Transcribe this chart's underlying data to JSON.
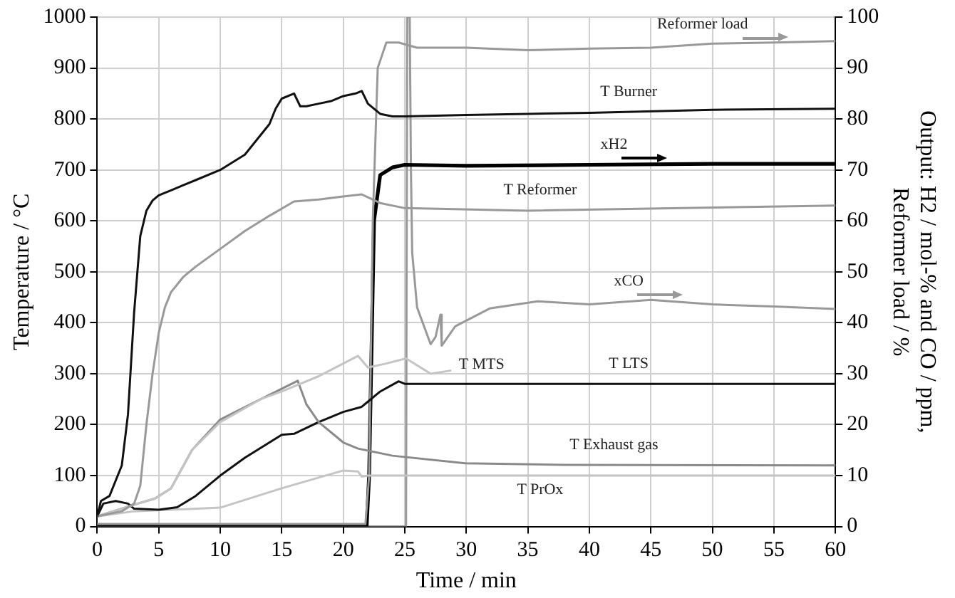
{
  "chart_data": {
    "type": "line",
    "xlabel": "Time / min",
    "ylabel": "Temperature / °C",
    "y2label": "Output: H2 / mol-% and CO / ppm, Reformer load / %",
    "xlim": [
      0,
      60
    ],
    "xticks": [
      0,
      5,
      10,
      15,
      20,
      25,
      30,
      35,
      40,
      45,
      50,
      55,
      60
    ],
    "ylim": [
      0,
      1000
    ],
    "yticks": [
      0,
      100,
      200,
      300,
      400,
      500,
      600,
      700,
      800,
      900,
      1000
    ],
    "y2lim": [
      0,
      100
    ],
    "y2ticks": [
      0,
      10,
      20,
      30,
      40,
      50,
      60,
      70,
      80,
      90,
      100
    ],
    "grid": true,
    "legend": false,
    "marker": "none",
    "line_style": "solid",
    "series": [
      {
        "name": "T Burner",
        "color": "#111111",
        "x": [
          0,
          0.3,
          1,
          2,
          2.5,
          3,
          3.5,
          4,
          4.5,
          5,
          6,
          8,
          10,
          12,
          13,
          14,
          14.5,
          15,
          16,
          16.5,
          17,
          18,
          19,
          20,
          21,
          21.5,
          22,
          23,
          24,
          25,
          30,
          35,
          40,
          50,
          60
        ],
        "values": [
          20,
          50,
          60,
          120,
          220,
          420,
          570,
          620,
          640,
          650,
          660,
          680,
          700,
          730,
          760,
          790,
          820,
          840,
          850,
          825,
          825,
          830,
          835,
          845,
          850,
          855,
          830,
          810,
          805,
          805,
          808,
          810,
          812,
          818,
          820
        ]
      },
      {
        "name": "T Reformer",
        "color": "#999999",
        "x": [
          0,
          2,
          3,
          3.5,
          4,
          4.5,
          5,
          5.5,
          6,
          7,
          8,
          10,
          12,
          14,
          16,
          18,
          20,
          21.5,
          23,
          25,
          35,
          60
        ],
        "values": [
          20,
          30,
          45,
          80,
          200,
          300,
          380,
          430,
          460,
          490,
          510,
          545,
          580,
          610,
          638,
          642,
          648,
          652,
          635,
          625,
          620,
          630
        ]
      },
      {
        "name": "T MTS",
        "color": "#c4c4c4",
        "x": [
          0,
          3.3,
          4.7,
          6,
          7.7,
          10,
          13.3,
          15,
          16.3,
          18,
          20,
          21.2,
          22,
          23.5,
          25.1,
          27.1,
          28.7
        ],
        "values": [
          20,
          45,
          55,
          75,
          150,
          205,
          250,
          265,
          278,
          295,
          320,
          335,
          312,
          320,
          330,
          300,
          306
        ]
      },
      {
        "name": "T Exhaust gas",
        "color": "#8a8a8a",
        "x": [
          0,
          3.3,
          4.7,
          6,
          7.7,
          10,
          13.3,
          16.3,
          17,
          18,
          20,
          21.2,
          24,
          29.9,
          37.9,
          60
        ],
        "values": [
          20,
          45,
          55,
          75,
          150,
          210,
          250,
          286,
          240,
          205,
          165,
          153,
          139,
          124,
          121,
          120
        ]
      },
      {
        "name": "T LTS",
        "color": "#111111",
        "x": [
          0,
          0.5,
          1.5,
          2.5,
          3,
          5,
          6.5,
          8,
          10,
          12,
          15,
          16,
          18,
          20,
          21.5,
          22,
          23,
          24.5,
          25,
          60
        ],
        "values": [
          20,
          45,
          50,
          45,
          35,
          33,
          38,
          60,
          100,
          135,
          180,
          182,
          205,
          225,
          235,
          245,
          265,
          285,
          280,
          280
        ]
      },
      {
        "name": "T PrOx",
        "color": "#c4c4c4",
        "x": [
          0,
          3,
          6,
          10,
          15,
          20,
          21.2,
          21.5,
          22,
          60
        ],
        "values": [
          20,
          30,
          33,
          37,
          75,
          110,
          108,
          98,
          100,
          100
        ]
      },
      {
        "name": "Reformer load",
        "color": "#999999",
        "axis": "y2",
        "x": [
          0,
          21.8,
          22.1,
          22.4,
          22.8,
          23.5,
          24.5,
          26,
          30,
          35,
          40,
          45,
          50,
          55,
          60
        ],
        "values": [
          0.5,
          0.5,
          10,
          60,
          90,
          95,
          95,
          94,
          94,
          93.5,
          93.8,
          94,
          94.8,
          95,
          95.3
        ]
      },
      {
        "name": "xH2",
        "color": "#000000",
        "axis": "y2",
        "x": [
          0,
          21.9,
          22.1,
          22.5,
          23,
          24,
          25,
          30,
          40,
          50,
          60
        ],
        "values": [
          0,
          0,
          10,
          60,
          69,
          70.5,
          71,
          70.8,
          71,
          71.2,
          71.2
        ]
      },
      {
        "name": "xCO",
        "color": "#999999",
        "axis": "y2",
        "x": [
          0,
          25.1,
          25.2,
          25.4,
          25.5,
          25.6,
          26,
          27.1,
          27.5,
          27.9,
          28,
          29.1,
          31.9,
          35.8,
          40,
          45,
          50,
          55,
          60
        ],
        "values": [
          0,
          0,
          100,
          100,
          70,
          53.8,
          43,
          35.8,
          37.2,
          41.6,
          35.5,
          39.3,
          42.8,
          44.2,
          43.6,
          44.5,
          43.6,
          43.2,
          42.7
        ]
      }
    ]
  }
}
